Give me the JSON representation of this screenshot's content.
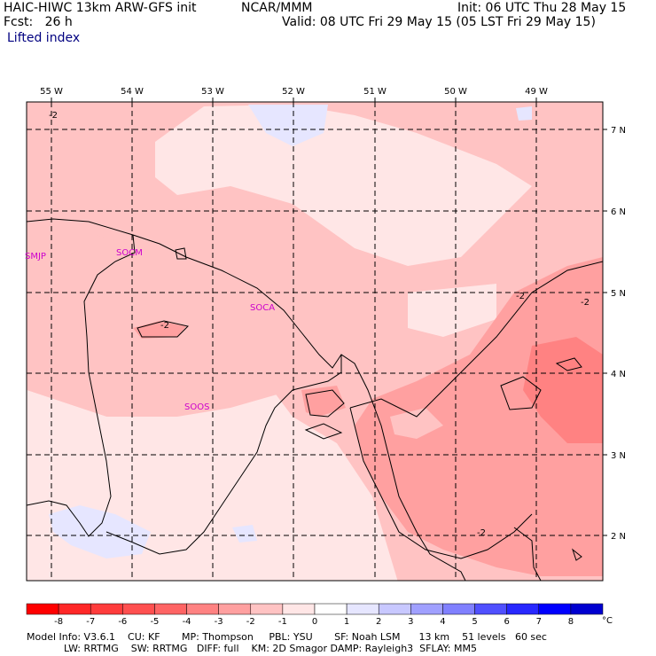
{
  "header": {
    "model_title": "HAIC-HIWC 13km ARW-GFS init",
    "org": "NCAR/MMM",
    "init": "Init: 06 UTC Thu 28 May 15",
    "fcst": "Fcst:   26 h",
    "valid": "Valid: 08 UTC Fri 29 May 15 (05 LST Fri 29 May 15)",
    "field_name": "Lifted index"
  },
  "map": {
    "lon_labels": [
      "55 W",
      "54 W",
      "53 W",
      "52 W",
      "51 W",
      "50 W",
      "49 W"
    ],
    "lat_labels": [
      "7 N",
      "6 N",
      "5 N",
      "4 N",
      "3 N",
      "2 N"
    ],
    "stations": [
      "SMJP",
      "SOCM",
      "SOCA",
      "SOOS"
    ],
    "contour_labels": [
      "-2",
      "-2",
      "-2",
      "-2",
      "-2"
    ]
  },
  "colorbar": {
    "labels": [
      "-8",
      "-7",
      "-6",
      "-5",
      "-4",
      "-3",
      "-2",
      "-1",
      "0",
      "1",
      "2",
      "3",
      "4",
      "5",
      "6",
      "7",
      "8"
    ],
    "unit": "°C",
    "colors": [
      "#ff0000",
      "#ff2828",
      "#ff3c3c",
      "#ff5050",
      "#ff6464",
      "#ff8282",
      "#ffa0a0",
      "#ffc3c3",
      "#ffe6e6",
      "#ffffff",
      "#e6e6ff",
      "#c8c8ff",
      "#a0a0ff",
      "#8080ff",
      "#5050ff",
      "#2828ff",
      "#0000ff",
      "#0000d0"
    ]
  },
  "footer": {
    "line1": "Model Info: V3.6.1    CU: KF       MP: Thompson     PBL: YSU       SF: Noah LSM      13 km    51 levels   60 sec",
    "line2": "            LW: RRTMG    SW: RRTMG   DIFF: full    KM: 2D Smagor DAMP: Rayleigh3  SFLAY: MM5"
  }
}
